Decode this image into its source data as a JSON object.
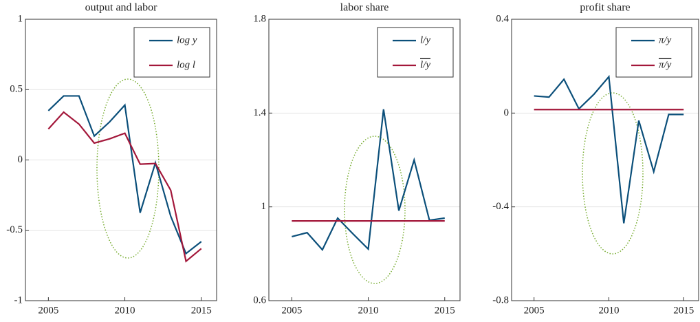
{
  "chart_data": [
    {
      "type": "line",
      "title": "output and labor",
      "x": [
        2005,
        2006,
        2007,
        2008,
        2009,
        2010,
        2011,
        2012,
        2013,
        2014,
        2015
      ],
      "xlim": [
        2003.5,
        2016
      ],
      "xticks": [
        2005,
        2010,
        2015
      ],
      "ylim": [
        -1,
        1
      ],
      "yticks": [
        -1,
        -0.5,
        0,
        0.5,
        1
      ],
      "grid": true,
      "legend": "upper right",
      "series": [
        {
          "name": "log y",
          "color": "#0b4f7a",
          "values": [
            0.35,
            0.455,
            0.455,
            0.17,
            0.27,
            0.39,
            -0.375,
            -0.02,
            -0.4,
            -0.665,
            -0.58
          ]
        },
        {
          "name": "log l",
          "color": "#a3173a",
          "values": [
            0.22,
            0.34,
            0.255,
            0.12,
            0.15,
            0.19,
            -0.03,
            -0.025,
            -0.215,
            -0.72,
            -0.63
          ]
        }
      ]
    },
    {
      "type": "line",
      "title": "labor share",
      "x": [
        2005,
        2006,
        2007,
        2008,
        2009,
        2010,
        2011,
        2012,
        2013,
        2014,
        2015
      ],
      "xlim": [
        2003.5,
        2016
      ],
      "xticks": [
        2005,
        2010,
        2015
      ],
      "ylim": [
        0.6,
        1.8
      ],
      "yticks": [
        0.6,
        1,
        1.4,
        1.8
      ],
      "grid": true,
      "legend": "upper right",
      "series": [
        {
          "name": "l/y",
          "color": "#0b4f7a",
          "values": [
            0.873,
            0.89,
            0.817,
            0.952,
            0.885,
            0.82,
            1.416,
            0.984,
            1.2,
            0.943,
            0.952
          ]
        },
        {
          "name": "l/y",
          "overline": true,
          "color": "#a3173a",
          "values": [
            0.94,
            0.94,
            0.94,
            0.94,
            0.94,
            0.94,
            0.94,
            0.94,
            0.94,
            0.94,
            0.94
          ]
        }
      ]
    },
    {
      "type": "line",
      "title": "profit share",
      "x": [
        2005,
        2006,
        2007,
        2008,
        2009,
        2010,
        2011,
        2012,
        2013,
        2014,
        2015
      ],
      "xlim": [
        2003.5,
        2016
      ],
      "xticks": [
        2005,
        2010,
        2015
      ],
      "ylim": [
        -0.8,
        0.4
      ],
      "yticks": [
        -0.8,
        -0.4,
        0,
        0.4
      ],
      "grid": true,
      "legend": "upper right",
      "series": [
        {
          "name": "π/y",
          "color": "#0b4f7a",
          "values": [
            0.073,
            0.068,
            0.144,
            0.018,
            0.08,
            0.155,
            -0.47,
            -0.032,
            -0.25,
            -0.006,
            -0.006
          ]
        },
        {
          "name": "π/y",
          "overline": true,
          "color": "#a3173a",
          "values": [
            0.015,
            0.015,
            0.015,
            0.015,
            0.015,
            0.015,
            0.015,
            0.015,
            0.015,
            0.015,
            0.015
          ]
        }
      ]
    }
  ]
}
